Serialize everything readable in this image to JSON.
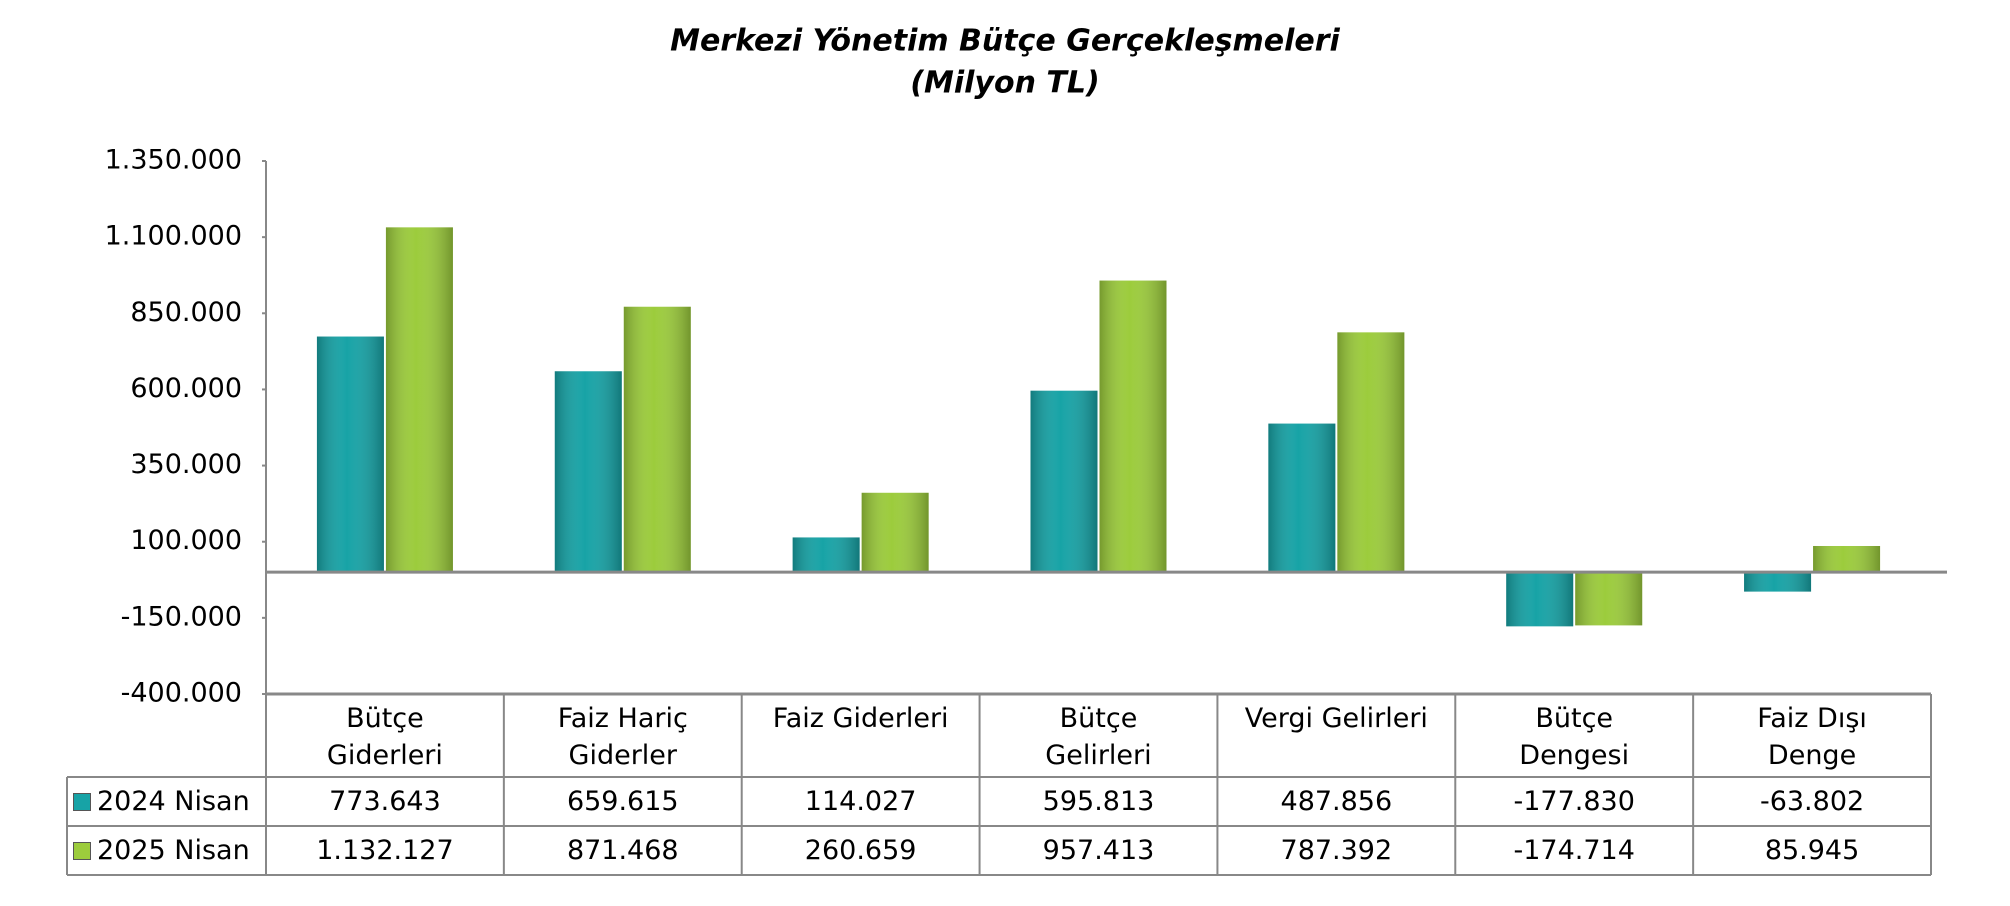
{
  "chart_data": {
    "type": "bar",
    "title": "Merkezi Yönetim Bütçe Gerçekleşmeleri",
    "subtitle": "(Milyon TL)",
    "categories": [
      "Bütçe\nGiderleri",
      "Faiz Hariç\nGiderler",
      "Faiz Giderleri",
      "Bütçe\nGelirleri",
      "Vergi Gelirleri",
      "Bütçe\nDengesi",
      "Faiz Dışı\nDenge"
    ],
    "series": [
      {
        "name": "2024 Nisan",
        "color": "#17a3a6",
        "values": [
          773643,
          659615,
          114027,
          595813,
          487856,
          -177830,
          -63802
        ],
        "value_labels": [
          "773.643",
          "659.615",
          "114.027",
          "595.813",
          "487.856",
          "-177.830",
          "-63.802"
        ]
      },
      {
        "name": "2025 Nisan",
        "color": "#9ccc3c",
        "values": [
          1132127,
          871468,
          260659,
          957413,
          787392,
          -174714,
          85945
        ],
        "value_labels": [
          "1.132.127",
          "871.468",
          "260.659",
          "957.413",
          "787.392",
          "-174.714",
          "85.945"
        ]
      }
    ],
    "ylim": [
      -400000,
      1350000
    ],
    "yticks": [
      {
        "value": -400000,
        "label": "-400.000"
      },
      {
        "value": -150000,
        "label": "-150.000"
      },
      {
        "value": 100000,
        "label": "100.000"
      },
      {
        "value": 350000,
        "label": "350.000"
      },
      {
        "value": 600000,
        "label": "600.000"
      },
      {
        "value": 850000,
        "label": "850.000"
      },
      {
        "value": 1100000,
        "label": "1.100.000"
      },
      {
        "value": 1350000,
        "label": "1.350.000"
      }
    ]
  }
}
